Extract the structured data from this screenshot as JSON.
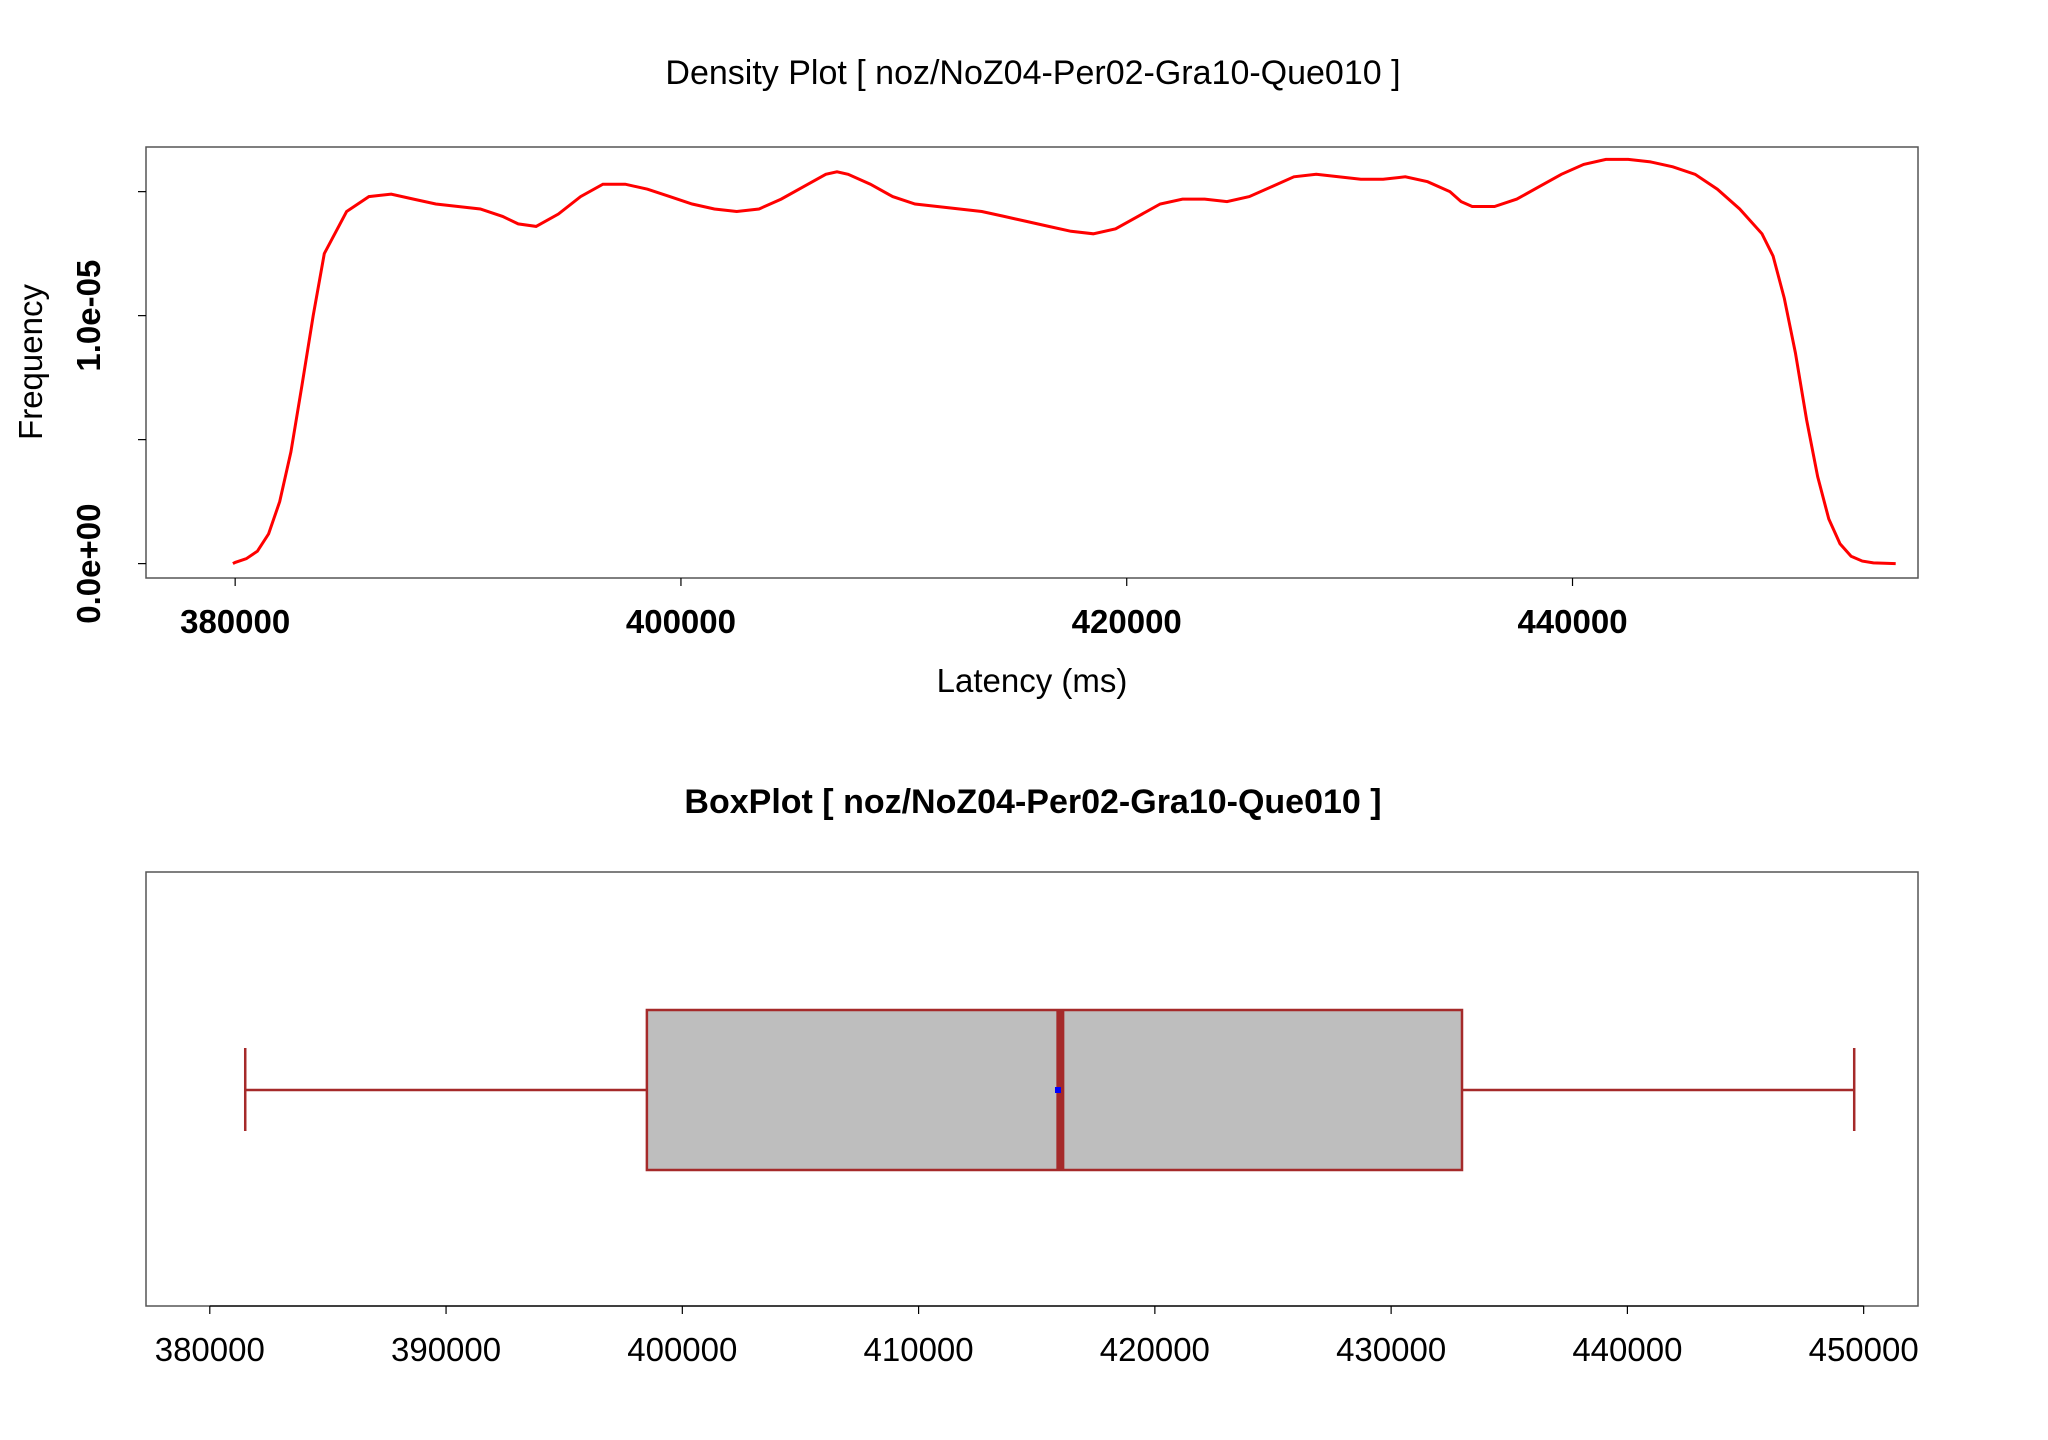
{
  "chart_data": [
    {
      "type": "line",
      "title": "Density Plot [ noz/NoZ04-Per02-Gra10-Que010 ]",
      "xlabel": "Latency (ms)",
      "ylabel": "Frequency",
      "xlim": [
        376000,
        455500
      ],
      "ylim": [
        -5.8e-07,
        1.68e-05
      ],
      "x_ticks": [
        380000,
        400000,
        420000,
        440000
      ],
      "x_tick_labels": [
        "380000",
        "400000",
        "420000",
        "440000"
      ],
      "y_ticks": [
        0,
        5e-06,
        1e-05,
        1.5e-05
      ],
      "y_tick_labels": [
        "0.0e+00",
        "",
        "1.0e-05",
        ""
      ],
      "grid": false,
      "legend": "none",
      "series": [
        {
          "color": "#ff0000",
          "x": [
            379900,
            380000,
            380500,
            381000,
            381500,
            382000,
            382500,
            383000,
            383500,
            384000,
            385000,
            386000,
            387000,
            388000,
            389000,
            390000,
            391000,
            392000,
            392700,
            393500,
            394500,
            395500,
            396500,
            397500,
            398500,
            399500,
            400500,
            401500,
            402500,
            403500,
            404500,
            405500,
            406500,
            407000,
            407500,
            408500,
            409500,
            410500,
            411500,
            412500,
            413500,
            414500,
            415500,
            416500,
            417500,
            418500,
            419500,
            420500,
            421500,
            422500,
            423500,
            424500,
            425500,
            426500,
            427500,
            428500,
            429500,
            430500,
            431500,
            432500,
            433500,
            434500,
            435000,
            435500,
            436500,
            437500,
            438500,
            439500,
            440500,
            441500,
            442500,
            443500,
            444500,
            445500,
            446500,
            447500,
            448500,
            449000,
            449500,
            450000,
            450500,
            451000,
            451500,
            452000,
            452500,
            453000,
            453500,
            454500
          ],
          "y": [
            0.0,
            5e-08,
            2e-07,
            5e-07,
            1.2e-06,
            2.5e-06,
            4.5e-06,
            7.2e-06,
            1e-05,
            1.25e-05,
            1.42e-05,
            1.48e-05,
            1.49e-05,
            1.47e-05,
            1.45e-05,
            1.44e-05,
            1.43e-05,
            1.4e-05,
            1.37e-05,
            1.36e-05,
            1.41e-05,
            1.48e-05,
            1.53e-05,
            1.53e-05,
            1.51e-05,
            1.48e-05,
            1.45e-05,
            1.43e-05,
            1.42e-05,
            1.43e-05,
            1.47e-05,
            1.52e-05,
            1.57e-05,
            1.58e-05,
            1.57e-05,
            1.53e-05,
            1.48e-05,
            1.45e-05,
            1.44e-05,
            1.43e-05,
            1.42e-05,
            1.4e-05,
            1.38e-05,
            1.36e-05,
            1.34e-05,
            1.33e-05,
            1.35e-05,
            1.4e-05,
            1.45e-05,
            1.47e-05,
            1.47e-05,
            1.46e-05,
            1.48e-05,
            1.52e-05,
            1.56e-05,
            1.57e-05,
            1.56e-05,
            1.55e-05,
            1.55e-05,
            1.56e-05,
            1.54e-05,
            1.5e-05,
            1.46e-05,
            1.44e-05,
            1.44e-05,
            1.47e-05,
            1.52e-05,
            1.57e-05,
            1.61e-05,
            1.63e-05,
            1.63e-05,
            1.62e-05,
            1.6e-05,
            1.57e-05,
            1.51e-05,
            1.43e-05,
            1.33e-05,
            1.24e-05,
            1.07e-05,
            8.5e-06,
            5.8e-06,
            3.5e-06,
            1.8e-06,
            8e-07,
            3e-07,
            1e-07,
            3e-08,
            0.0
          ]
        }
      ]
    },
    {
      "type": "box",
      "title": "BoxPlot [ noz/NoZ04-Per02-Gra10-Que010 ]",
      "orientation": "horizontal",
      "xlim": [
        377300,
        452300
      ],
      "x_ticks": [
        380000,
        390000,
        400000,
        410000,
        420000,
        430000,
        440000,
        450000
      ],
      "x_tick_labels": [
        "380000",
        "390000",
        "400000",
        "410000",
        "420000",
        "430000",
        "440000",
        "450000"
      ],
      "box_fill": "#bebebe",
      "box_stroke": "#a52a2a",
      "mean_color": "#0000ff",
      "stats": {
        "min": 381500,
        "q1": 398500,
        "median": 416000,
        "mean": 415900,
        "q3": 433000,
        "max": 449600
      }
    }
  ]
}
